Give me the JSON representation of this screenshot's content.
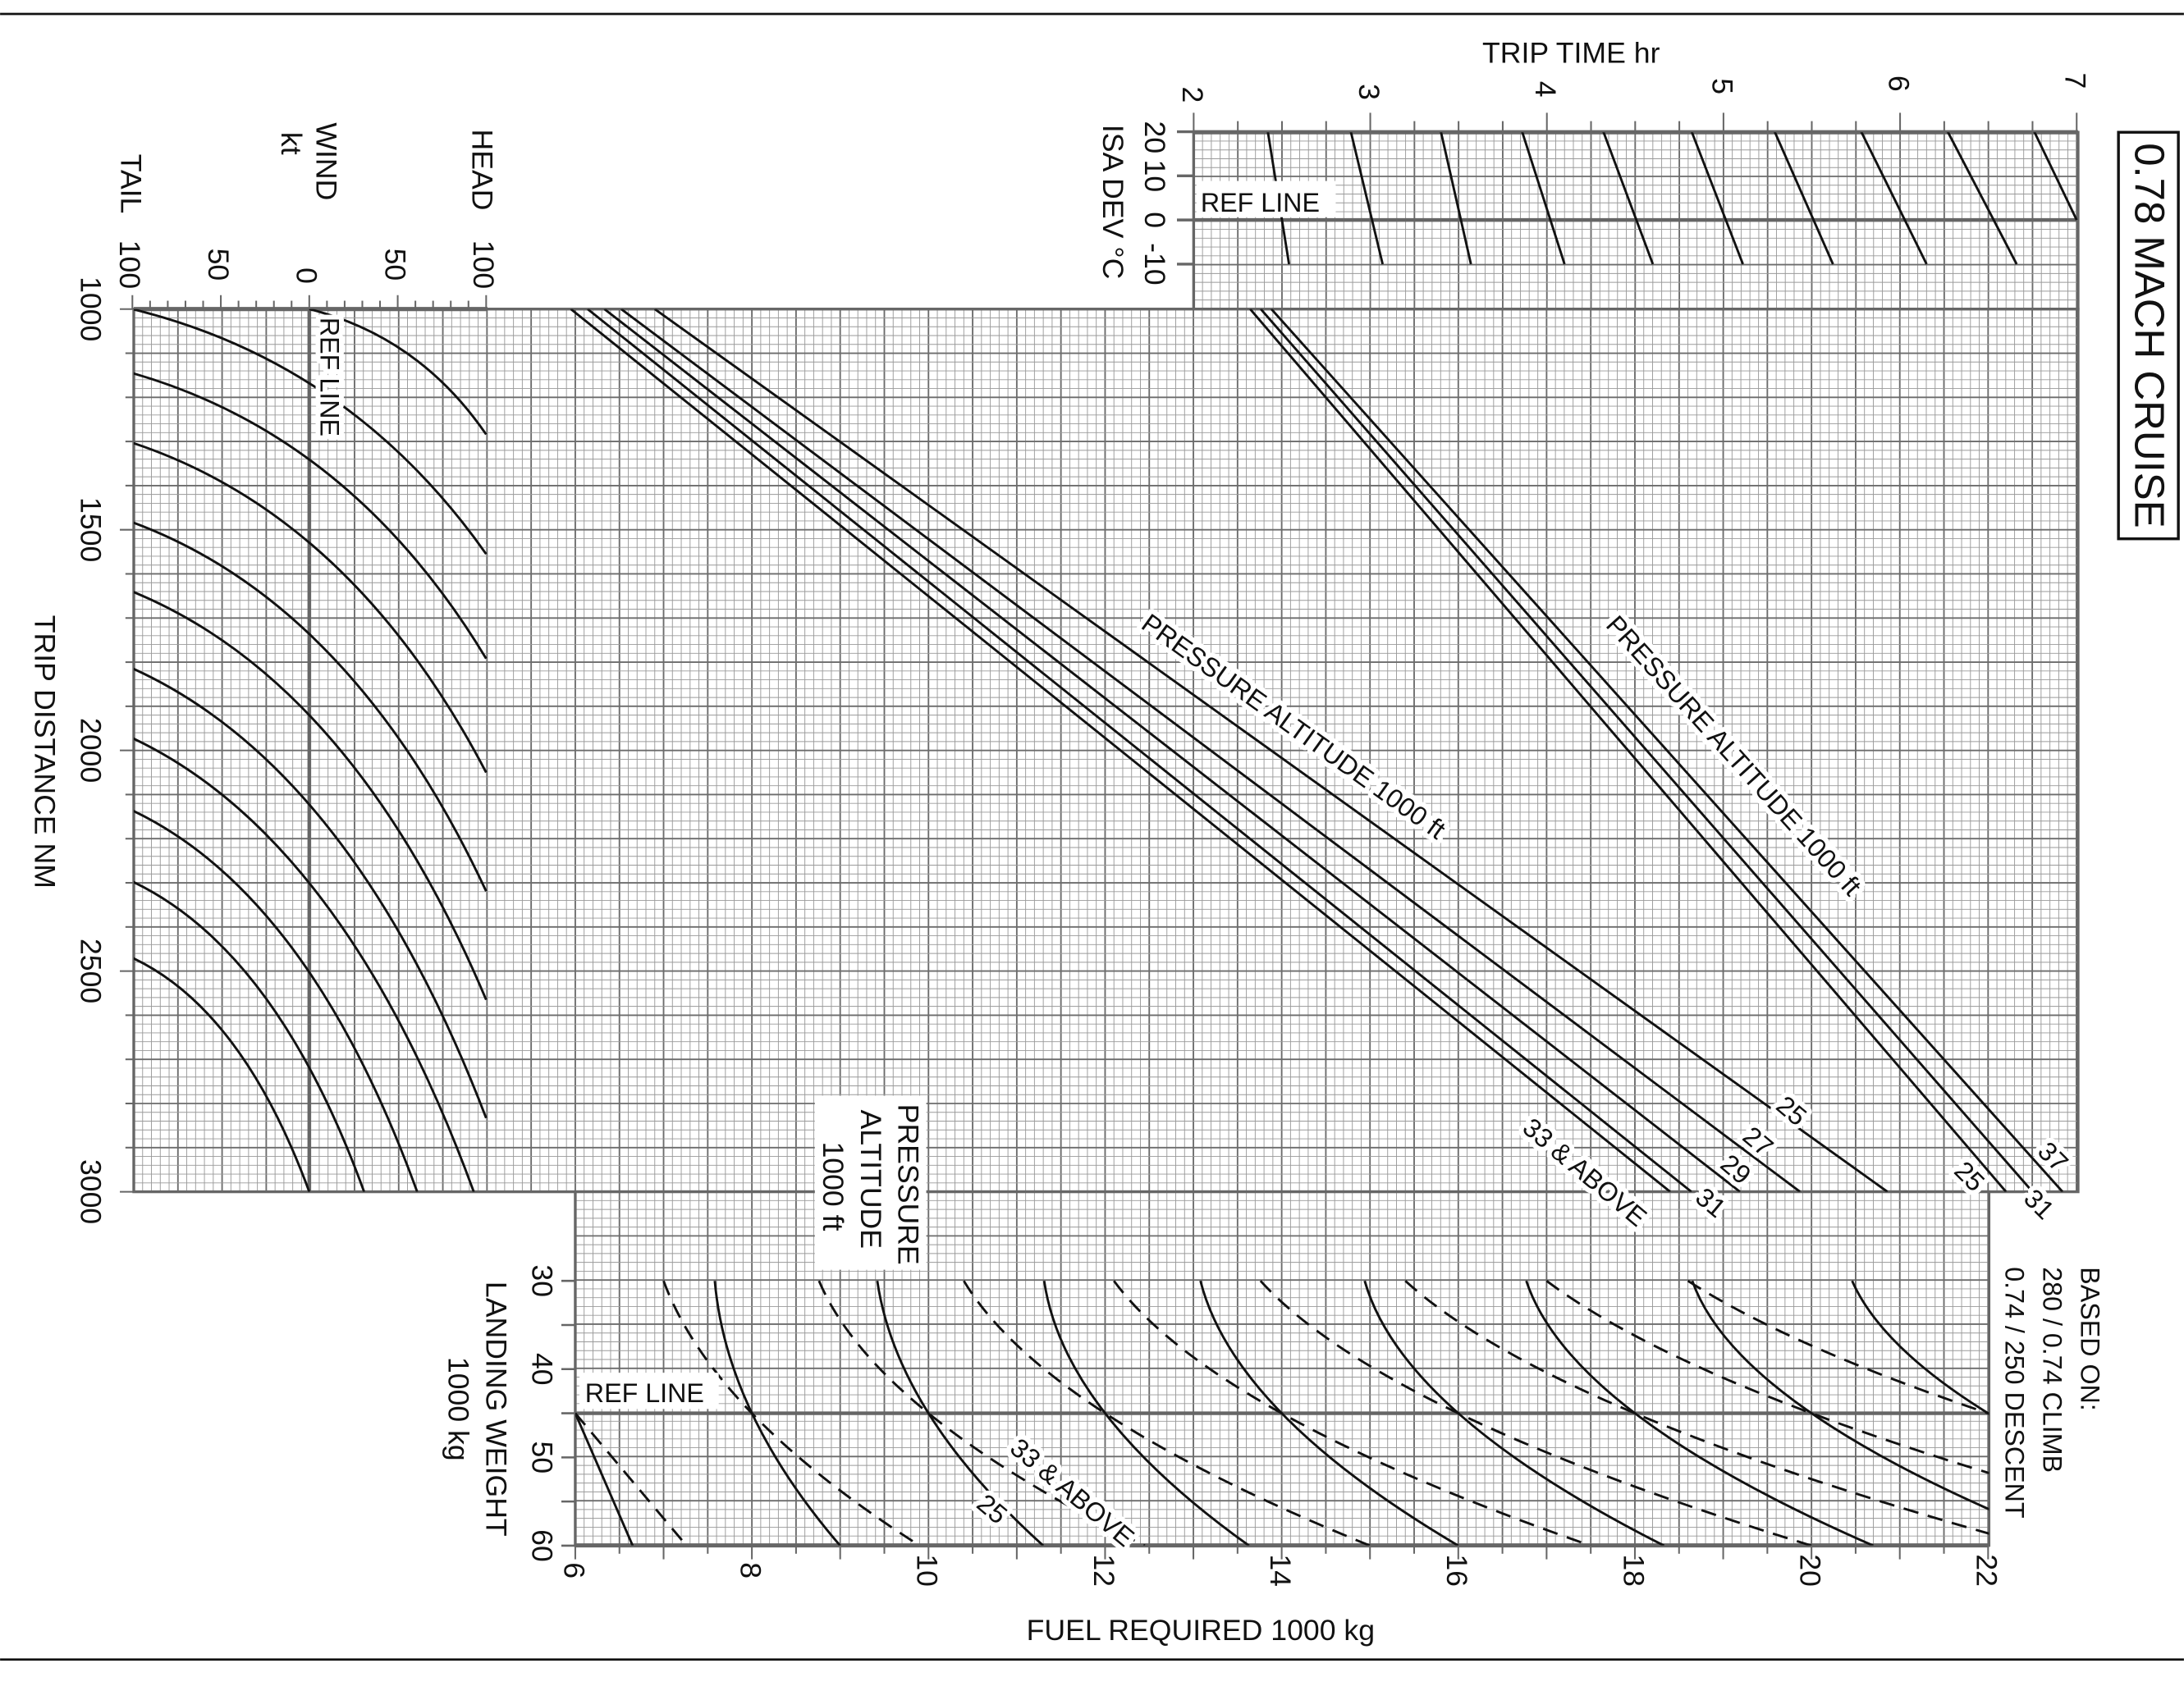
{
  "chart_data": {
    "type": "line",
    "title": "0.78 MACH CRUISE",
    "based_on": [
      "BASED ON:",
      "280 / 0.74 CLIMB",
      "0.74 / 250 DESCENT"
    ],
    "grid": true,
    "trip_distance": {
      "label": "TRIP DISTANCE  NM",
      "range": [
        1000,
        3000
      ],
      "ticks": [
        "1000",
        "1500",
        "2000",
        "2500",
        "3000"
      ]
    },
    "wind": {
      "label": "WIND",
      "unit": "kt",
      "tail": "TAIL",
      "head": "HEAD",
      "range": [
        -100,
        100
      ],
      "ticks": [
        "100",
        "50",
        "0",
        "50",
        "100"
      ],
      "ref_label": "REF LINE",
      "curves": [
        [
          [
            0,
            1000
          ],
          [
            100,
            1284
          ]
        ],
        [
          [
            -100,
            1000
          ],
          [
            100,
            1555
          ]
        ],
        [
          [
            -100,
            1145
          ],
          [
            100,
            1792
          ]
        ],
        [
          [
            -100,
            1303
          ],
          [
            100,
            2050
          ]
        ],
        [
          [
            -100,
            1483
          ],
          [
            100,
            2319
          ]
        ],
        [
          [
            -100,
            1640
          ],
          [
            100,
            2565
          ]
        ],
        [
          [
            -100,
            1814
          ],
          [
            100,
            2833
          ]
        ],
        [
          [
            -100,
            1972
          ],
          [
            93,
            3000
          ]
        ],
        [
          [
            -100,
            2136
          ],
          [
            61,
            3000
          ]
        ],
        [
          [
            -100,
            2297
          ],
          [
            31,
            3000
          ]
        ],
        [
          [
            -100,
            2470
          ],
          [
            0,
            3000
          ]
        ]
      ]
    },
    "trip_time": {
      "label": "TRIP TIME  hr",
      "range": [
        2,
        7
      ],
      "ticks": [
        "2",
        "3",
        "4",
        "5",
        "6",
        "7"
      ],
      "isa_lines": [
        [
          [
            20,
            2.42
          ],
          [
            -10,
            2.54
          ]
        ],
        [
          [
            20,
            2.89
          ],
          [
            -10,
            3.07
          ]
        ],
        [
          [
            20,
            3.4
          ],
          [
            -10,
            3.57
          ]
        ],
        [
          [
            20,
            3.86
          ],
          [
            -10,
            4.1
          ]
        ],
        [
          [
            20,
            4.32
          ],
          [
            -10,
            4.6
          ]
        ],
        [
          [
            20,
            4.82
          ],
          [
            -10,
            5.11
          ]
        ],
        [
          [
            20,
            5.29
          ],
          [
            -10,
            5.62
          ]
        ],
        [
          [
            20,
            5.78
          ],
          [
            -10,
            6.15
          ]
        ],
        [
          [
            20,
            6.27
          ],
          [
            -10,
            6.66
          ]
        ],
        [
          [
            20,
            6.76
          ],
          [
            0,
            7.0
          ]
        ]
      ]
    },
    "isa_dev": {
      "label": "ISA DEV °C",
      "range": [
        -10,
        20
      ],
      "ticks": [
        "20",
        "10",
        "0",
        "-10"
      ],
      "ref_label": "REF LINE"
    },
    "fuel_required": {
      "label": "FUEL REQUIRED  1000 kg",
      "range": [
        6,
        22
      ],
      "ticks": [
        "6",
        "8",
        "10",
        "12",
        "14",
        "16",
        "18",
        "20",
        "22"
      ]
    },
    "pressure_altitude_fuel": {
      "label": "PRESSURE ALTITUDE  1000 ft",
      "lines": [
        {
          "label": "25",
          "points": [
            [
              1000,
              6.9
            ],
            [
              3000,
              20.86
            ]
          ]
        },
        {
          "label": "27",
          "points": [
            [
              1000,
              6.52
            ],
            [
              3000,
              19.87
            ]
          ]
        },
        {
          "label": "29",
          "points": [
            [
              1000,
              6.33
            ],
            [
              3000,
              19.19
            ]
          ]
        },
        {
          "label": "31",
          "points": [
            [
              1000,
              6.14
            ],
            [
              3000,
              18.64
            ]
          ]
        },
        {
          "label": "33 & ABOVE",
          "points": [
            [
              1000,
              5.95
            ],
            [
              3000,
              18.4
            ]
          ]
        }
      ]
    },
    "pressure_altitude_time": {
      "label": "PRESSURE ALTITUDE  1000 ft",
      "lines": [
        {
          "label": "25",
          "points": [
            [
              1000,
              2.32
            ],
            [
              3000,
              6.6
            ]
          ]
        },
        {
          "label": "31",
          "points": [
            [
              1000,
              2.38
            ],
            [
              3000,
              6.75
            ]
          ]
        },
        {
          "label": "37",
          "points": [
            [
              1000,
              2.44
            ],
            [
              3000,
              6.92
            ]
          ]
        }
      ]
    },
    "pressure_altitude_box": [
      "PRESSURE",
      "ALTITUDE",
      "1000 ft"
    ],
    "landing_weight": {
      "label": "LANDING WEIGHT",
      "unit": "1000 kg",
      "range": [
        30,
        60
      ],
      "ticks": [
        "30",
        "40",
        "50",
        "60"
      ],
      "ref_label": "REF LINE",
      "ref_value": 45,
      "solid_label": "25",
      "dashed_label": "33 & ABOVE",
      "solid_lines": [
        [
          [
            45,
            6
          ],
          [
            60,
            6.65
          ]
        ],
        [
          [
            30,
            7.58
          ],
          [
            45,
            8
          ],
          [
            60,
            9.0
          ]
        ],
        [
          [
            30,
            9.42
          ],
          [
            45,
            10
          ],
          [
            60,
            11.3
          ]
        ],
        [
          [
            30,
            11.31
          ],
          [
            45,
            12
          ],
          [
            60,
            13.63
          ]
        ],
        [
          [
            30,
            13.08
          ],
          [
            45,
            14
          ],
          [
            60,
            16.0
          ]
        ],
        [
          [
            30,
            14.94
          ],
          [
            45,
            16
          ],
          [
            60,
            18.33
          ]
        ],
        [
          [
            30,
            16.77
          ],
          [
            45,
            18
          ],
          [
            60,
            20.7
          ]
        ],
        [
          [
            30,
            18.65
          ],
          [
            45,
            20
          ],
          [
            60,
            23.0
          ]
        ],
        [
          [
            30,
            20.46
          ],
          [
            45,
            22
          ],
          [
            60,
            25.3
          ]
        ]
      ],
      "dashed_lines": [
        [
          [
            45,
            6
          ],
          [
            60,
            7.26
          ]
        ],
        [
          [
            30,
            7.0
          ],
          [
            45,
            8
          ],
          [
            60,
            9.9
          ]
        ],
        [
          [
            30,
            8.76
          ],
          [
            45,
            10
          ],
          [
            60,
            12.45
          ]
        ],
        [
          [
            30,
            10.4
          ],
          [
            45,
            12
          ],
          [
            60,
            15.0
          ]
        ],
        [
          [
            30,
            12.1
          ],
          [
            45,
            14
          ],
          [
            60,
            17.5
          ]
        ],
        [
          [
            30,
            13.76
          ],
          [
            45,
            16
          ],
          [
            60,
            20.0
          ]
        ],
        [
          [
            30,
            15.4
          ],
          [
            45,
            18
          ],
          [
            60,
            22.5
          ]
        ],
        [
          [
            30,
            17.0
          ],
          [
            45,
            20
          ],
          [
            60,
            25.0
          ]
        ],
        [
          [
            30,
            18.6
          ],
          [
            45,
            22
          ],
          [
            60,
            27.5
          ]
        ]
      ]
    }
  }
}
